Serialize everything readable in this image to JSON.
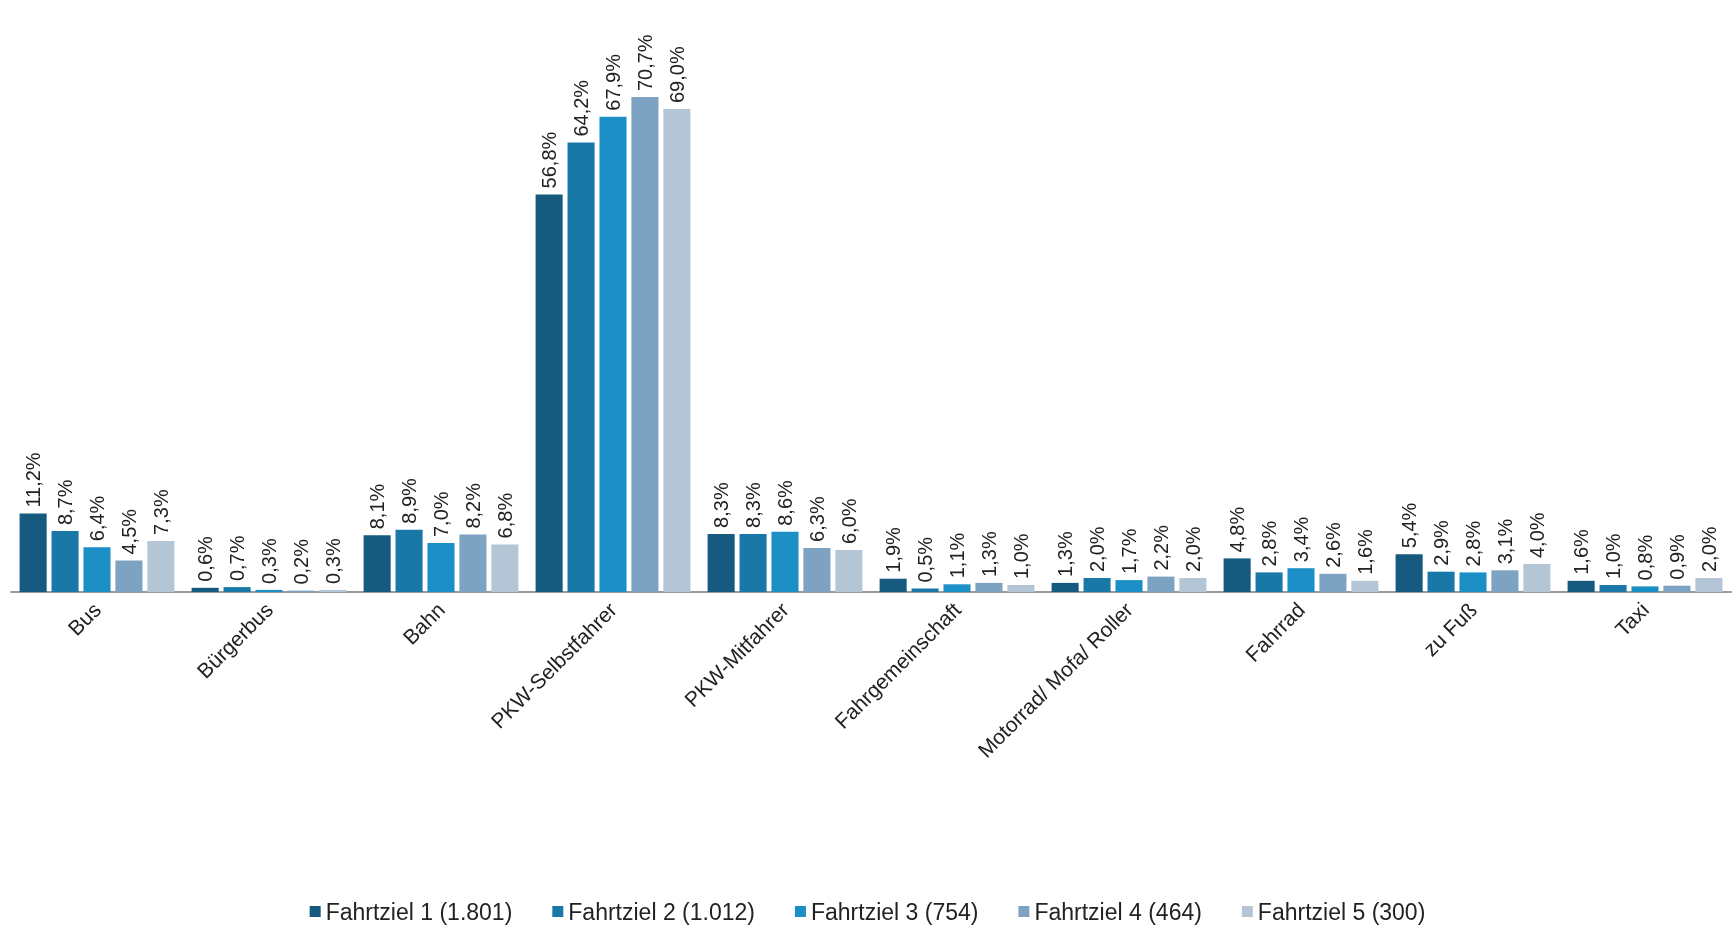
{
  "chart_data": {
    "type": "bar",
    "categories": [
      "Bus",
      "Bürgerbus",
      "Bahn",
      "PKW-Selbstfahrer",
      "PKW-Mitfahrer",
      "Fahrgemeinschaft",
      "Motorrad/ Mofa/ Roller",
      "Fahrrad",
      "zu Fuß",
      "Taxi"
    ],
    "series": [
      {
        "name": "Fahrtziel 1 (1.801)",
        "color": "#165a80",
        "values": [
          11.2,
          0.6,
          8.1,
          56.8,
          8.3,
          1.9,
          1.3,
          4.8,
          5.4,
          1.6
        ],
        "value_labels": [
          "11,2%",
          "0,6%",
          "8,1%",
          "56,8%",
          "8,3%",
          "1,9%",
          "1,3%",
          "4,8%",
          "5,4%",
          "1,6%"
        ]
      },
      {
        "name": "Fahrtziel 2 (1.012)",
        "color": "#1a78a8",
        "values": [
          8.7,
          0.7,
          8.9,
          64.2,
          8.3,
          0.5,
          2.0,
          2.8,
          2.9,
          1.0
        ],
        "value_labels": [
          "8,7%",
          "0,7%",
          "8,9%",
          "64,2%",
          "8,3%",
          "0,5%",
          "2,0%",
          "2,8%",
          "2,9%",
          "1,0%"
        ]
      },
      {
        "name": "Fahrtziel 3 (754)",
        "color": "#1c8fc6",
        "values": [
          6.4,
          0.3,
          7.0,
          67.9,
          8.6,
          1.1,
          1.7,
          3.4,
          2.8,
          0.8
        ],
        "value_labels": [
          "6,4%",
          "0,3%",
          "7,0%",
          "67,9%",
          "8,6%",
          "1,1%",
          "1,7%",
          "3,4%",
          "2,8%",
          "0,8%"
        ]
      },
      {
        "name": "Fahrtziel 4 (464)",
        "color": "#7ea2c2",
        "values": [
          4.5,
          0.2,
          8.2,
          70.7,
          6.3,
          1.3,
          2.2,
          2.6,
          3.1,
          0.9
        ],
        "value_labels": [
          "4,5%",
          "0,2%",
          "8,2%",
          "70,7%",
          "6,3%",
          "1,3%",
          "2,2%",
          "2,6%",
          "3,1%",
          "0,9%"
        ]
      },
      {
        "name": "Fahrtziel 5 (300)",
        "color": "#b4c6d6",
        "values": [
          7.3,
          0.3,
          6.8,
          69.0,
          6.0,
          1.0,
          2.0,
          1.6,
          4.0,
          2.0
        ],
        "value_labels": [
          "7,3%",
          "0,3%",
          "6,8%",
          "69,0%",
          "6,0%",
          "1,0%",
          "2,0%",
          "1,6%",
          "4,0%",
          "2,0%"
        ]
      }
    ],
    "legend": "bottom",
    "tick_labels": "x"
  }
}
